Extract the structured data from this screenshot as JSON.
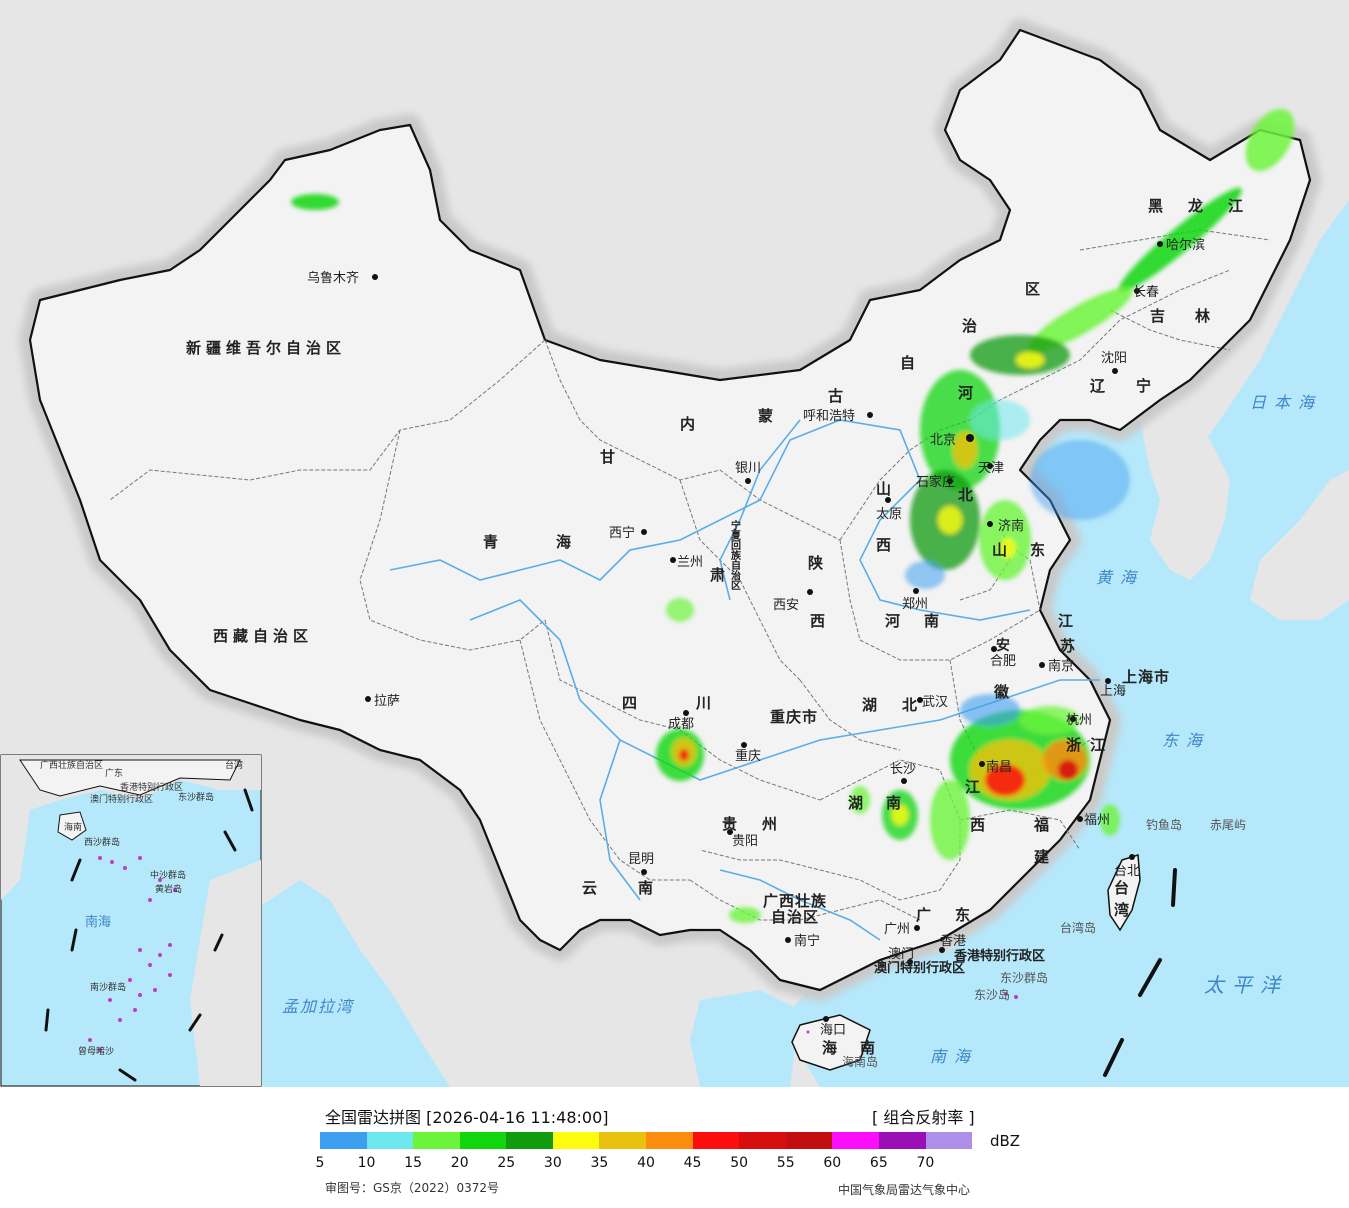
{
  "map": {
    "provinces": [
      {
        "label": "新疆维吾尔自治区"
      },
      {
        "label": "西藏自治区"
      },
      {
        "label": "青"
      },
      {
        "label": "海"
      },
      {
        "label": "甘"
      },
      {
        "label": "肃"
      },
      {
        "label": "内"
      },
      {
        "label": "蒙"
      },
      {
        "label": "古"
      },
      {
        "label": "自"
      },
      {
        "label": "治"
      },
      {
        "label": "区"
      },
      {
        "label": "黑"
      },
      {
        "label": "龙"
      },
      {
        "label": "江"
      },
      {
        "label": "吉"
      },
      {
        "label": "林"
      },
      {
        "label": "辽"
      },
      {
        "label": "宁"
      },
      {
        "label": "四"
      },
      {
        "label": "川"
      },
      {
        "label": "云"
      },
      {
        "label": "南"
      },
      {
        "label": "贵"
      },
      {
        "label": "州"
      },
      {
        "label": "广西壮族"
      },
      {
        "label": "自治区"
      },
      {
        "label": "广"
      },
      {
        "label": "东"
      },
      {
        "label": "湖"
      },
      {
        "label": "北"
      },
      {
        "label": "湖"
      },
      {
        "label": "南"
      },
      {
        "label": "江"
      },
      {
        "label": "西"
      },
      {
        "label": "安"
      },
      {
        "label": "徽"
      },
      {
        "label": "江"
      },
      {
        "label": "苏"
      },
      {
        "label": "浙"
      },
      {
        "label": "江"
      },
      {
        "label": "福"
      },
      {
        "label": "建"
      },
      {
        "label": "台"
      },
      {
        "label": "湾"
      },
      {
        "label": "海"
      },
      {
        "label": "南"
      },
      {
        "label": "陕"
      },
      {
        "label": "西"
      },
      {
        "label": "山"
      },
      {
        "label": "西"
      },
      {
        "label": "河"
      },
      {
        "label": "南"
      },
      {
        "label": "山"
      },
      {
        "label": "东"
      },
      {
        "label": "河"
      },
      {
        "label": "北"
      },
      {
        "label": "重庆市"
      },
      {
        "label": "上海市"
      },
      {
        "label": "宁夏回族自治区"
      },
      {
        "label": "香港特别行政区"
      },
      {
        "label": "澳门特别行政区"
      }
    ],
    "capitals": [
      {
        "label": "乌鲁木齐"
      },
      {
        "label": "拉萨"
      },
      {
        "label": "西宁"
      },
      {
        "label": "兰州"
      },
      {
        "label": "银川"
      },
      {
        "label": "呼和浩特"
      },
      {
        "label": "哈尔滨"
      },
      {
        "label": "长春"
      },
      {
        "label": "沈阳"
      },
      {
        "label": "北京"
      },
      {
        "label": "天津"
      },
      {
        "label": "石家庄"
      },
      {
        "label": "太原"
      },
      {
        "label": "济南"
      },
      {
        "label": "郑州"
      },
      {
        "label": "西安"
      },
      {
        "label": "合肥"
      },
      {
        "label": "南京"
      },
      {
        "label": "上海"
      },
      {
        "label": "杭州"
      },
      {
        "label": "武汉"
      },
      {
        "label": "成都"
      },
      {
        "label": "重庆"
      },
      {
        "label": "长沙"
      },
      {
        "label": "南昌"
      },
      {
        "label": "福州"
      },
      {
        "label": "贵阳"
      },
      {
        "label": "昆明"
      },
      {
        "label": "南宁"
      },
      {
        "label": "广州"
      },
      {
        "label": "香港"
      },
      {
        "label": "澳门"
      },
      {
        "label": "海口"
      },
      {
        "label": "台北"
      }
    ],
    "seas": [
      {
        "label": "日本海"
      },
      {
        "label": "黄海"
      },
      {
        "label": "东海"
      },
      {
        "label": "太平洋"
      },
      {
        "label": "南海"
      },
      {
        "label": "孟加拉湾"
      }
    ],
    "islands": [
      {
        "label": "钓鱼岛"
      },
      {
        "label": "赤尾屿"
      },
      {
        "label": "台湾岛"
      },
      {
        "label": "东沙群岛"
      },
      {
        "label": "东沙岛"
      },
      {
        "label": "海南岛"
      }
    ],
    "inset": [
      {
        "label": "广西壮族自治区"
      },
      {
        "label": "广东"
      },
      {
        "label": "台湾"
      },
      {
        "label": "香港特别行政区"
      },
      {
        "label": "澳门特别行政区"
      },
      {
        "label": "海南"
      },
      {
        "label": "东沙群岛"
      },
      {
        "label": "西沙群岛"
      },
      {
        "label": "中沙群岛"
      },
      {
        "label": "黄岩岛"
      },
      {
        "label": "南海"
      },
      {
        "label": "南沙群岛"
      },
      {
        "label": "曾母暗沙"
      }
    ],
    "colors": {
      "ocean": "#b5e8fb",
      "land": "#f3f3f3",
      "foreign": "#e6e6e6",
      "border": "#111111",
      "river": "#5aaee6",
      "halo": "#c9c9c9"
    }
  },
  "footer": {
    "title": "全国雷达拼图 [2026-04-16 11:48:00]",
    "product": "[ 组合反射率 ]",
    "unit": "dBZ",
    "review_number": "审图号：GS京（2022）0372号",
    "organization": "中国气象局雷达气象中心"
  },
  "legend": {
    "colors": [
      "#3e9ef0",
      "#6de8ec",
      "#6cf43c",
      "#11d60e",
      "#119b0e",
      "#fcfc0e",
      "#e8c20e",
      "#fc8c0e",
      "#fc0e0e",
      "#d80e0e",
      "#c20e0e",
      "#fc0efc",
      "#9a0eb5",
      "#ad8ee8"
    ],
    "ticks": [
      "5",
      "10",
      "15",
      "20",
      "25",
      "30",
      "35",
      "40",
      "45",
      "50",
      "55",
      "60",
      "65",
      "70"
    ]
  }
}
